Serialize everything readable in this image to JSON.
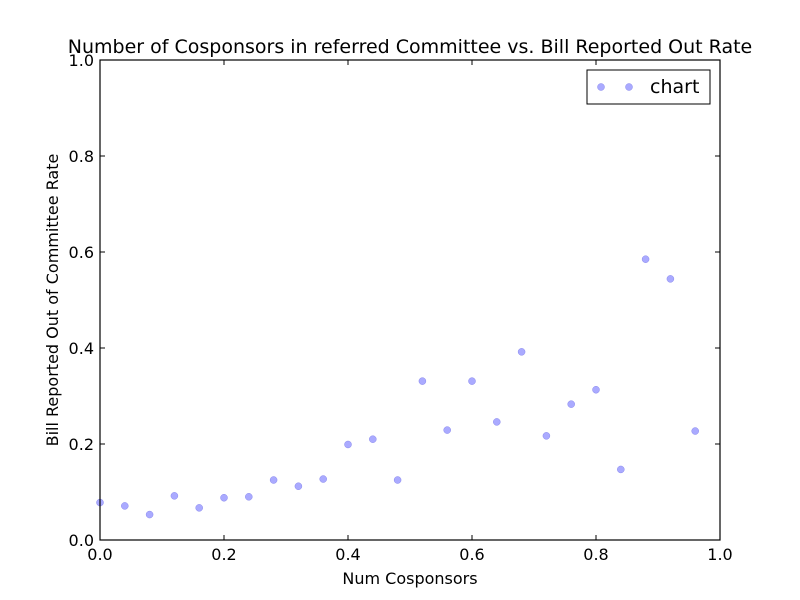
{
  "chart_data": {
    "type": "scatter",
    "title": "Number of Cosponsors in referred Committee vs. Bill Reported Out Rate",
    "xlabel": "Num Cosponsors",
    "ylabel": "Bill Reported Out of Committee Rate",
    "xlim": [
      0.0,
      1.0
    ],
    "ylim": [
      0.0,
      1.0
    ],
    "xticks": [
      "0.0",
      "0.2",
      "0.4",
      "0.6",
      "0.8",
      "1.0"
    ],
    "yticks": [
      "0.0",
      "0.2",
      "0.4",
      "0.6",
      "0.8",
      "1.0"
    ],
    "grid": false,
    "legend": {
      "position": "top-right",
      "entries": [
        "chart"
      ]
    },
    "series": [
      {
        "name": "chart",
        "color": "#aaaaff",
        "points": [
          {
            "x": 0.0,
            "y": 0.078
          },
          {
            "x": 0.04,
            "y": 0.071
          },
          {
            "x": 0.08,
            "y": 0.053
          },
          {
            "x": 0.12,
            "y": 0.092
          },
          {
            "x": 0.16,
            "y": 0.067
          },
          {
            "x": 0.2,
            "y": 0.088
          },
          {
            "x": 0.24,
            "y": 0.09
          },
          {
            "x": 0.28,
            "y": 0.125
          },
          {
            "x": 0.32,
            "y": 0.112
          },
          {
            "x": 0.36,
            "y": 0.127
          },
          {
            "x": 0.4,
            "y": 0.199
          },
          {
            "x": 0.44,
            "y": 0.21
          },
          {
            "x": 0.48,
            "y": 0.125
          },
          {
            "x": 0.52,
            "y": 0.331
          },
          {
            "x": 0.56,
            "y": 0.229
          },
          {
            "x": 0.6,
            "y": 0.331
          },
          {
            "x": 0.64,
            "y": 0.246
          },
          {
            "x": 0.68,
            "y": 0.392
          },
          {
            "x": 0.72,
            "y": 0.217
          },
          {
            "x": 0.76,
            "y": 0.283
          },
          {
            "x": 0.8,
            "y": 0.313
          },
          {
            "x": 0.84,
            "y": 0.147
          },
          {
            "x": 0.88,
            "y": 0.585
          },
          {
            "x": 0.92,
            "y": 0.544
          },
          {
            "x": 0.96,
            "y": 0.227
          }
        ]
      }
    ]
  }
}
